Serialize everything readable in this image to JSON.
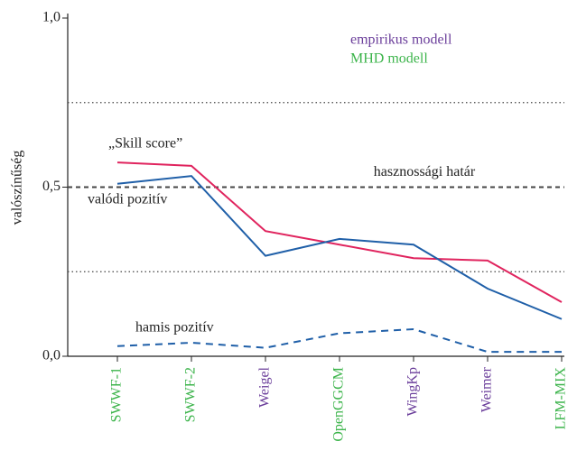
{
  "chart_data": {
    "type": "line",
    "y_label": "valószínűség",
    "categories": [
      "SWWF-1",
      "SWWF-2",
      "Weigel",
      "OpenGGCM",
      "WingKp",
      "Weimer",
      "LFM-MIX"
    ],
    "category_colors": [
      "#3cb44b",
      "#3cb44b",
      "#6a3d9a",
      "#3cb44b",
      "#6a3d9a",
      "#6a3d9a",
      "#3cb44b"
    ],
    "legend": [
      {
        "name": "empirikus modell",
        "color": "#6a3d9a"
      },
      {
        "name": "MHD modell",
        "color": "#3cb44b"
      }
    ],
    "series": [
      {
        "name": "„Skill score”",
        "color": "#e0245e",
        "dash": "solid",
        "values": [
          0.573,
          0.563,
          0.37,
          0.33,
          0.29,
          0.283,
          0.16
        ]
      },
      {
        "name": "valódi pozitív",
        "color": "#1f5fa8",
        "dash": "solid",
        "values": [
          0.51,
          0.533,
          0.297,
          0.347,
          0.33,
          0.2,
          0.11
        ]
      },
      {
        "name": "hamis pozitív",
        "color": "#1f5fa8",
        "dash": "dashed",
        "values": [
          0.03,
          0.04,
          0.025,
          0.068,
          0.08,
          0.013,
          0.013
        ]
      }
    ],
    "reference_lines": [
      {
        "value": 0.25,
        "style": "dotted"
      },
      {
        "value": 0.5,
        "style": "dashed",
        "label": "hasznossági határ"
      },
      {
        "value": 0.75,
        "style": "dotted"
      }
    ],
    "ylim": [
      0,
      1
    ],
    "yticks": [
      {
        "value": 0,
        "label": "0,0"
      },
      {
        "value": 0.5,
        "label": "0,5"
      },
      {
        "value": 1,
        "label": "1,0"
      }
    ]
  }
}
